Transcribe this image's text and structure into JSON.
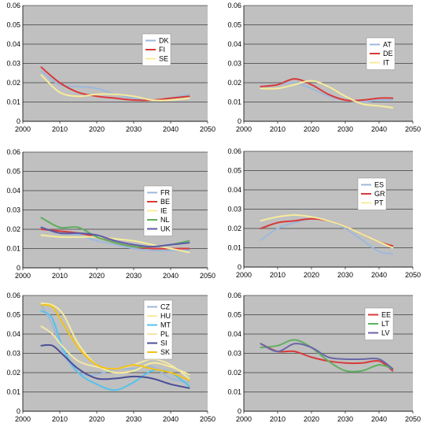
{
  "chart_data": [
    {
      "type": "line",
      "xlim": [
        2000,
        2050
      ],
      "ylim": [
        0,
        0.06
      ],
      "xticks": [
        "2000",
        "2010",
        "2020",
        "2030",
        "2040",
        "2050"
      ],
      "yticks": [
        "0",
        "0.01",
        "0.02",
        "0.03",
        "0.04",
        "0.05",
        "0.06"
      ],
      "grid": true,
      "legend": "center-right",
      "series": [
        {
          "name": "DK",
          "color": "#9db8da",
          "x": [
            2005,
            2010,
            2015,
            2020,
            2025,
            2030,
            2035,
            2040,
            2045
          ],
          "y": [
            0.026,
            0.019,
            0.018,
            0.017,
            0.014,
            0.012,
            0.011,
            0.012,
            0.014
          ]
        },
        {
          "name": "FI",
          "color": "#d83a3a",
          "x": [
            2005,
            2010,
            2015,
            2020,
            2025,
            2030,
            2035,
            2040,
            2045
          ],
          "y": [
            0.028,
            0.02,
            0.015,
            0.013,
            0.012,
            0.011,
            0.011,
            0.012,
            0.013
          ]
        },
        {
          "name": "SE",
          "color": "#f6ec9c",
          "x": [
            2005,
            2010,
            2015,
            2020,
            2025,
            2030,
            2035,
            2040,
            2045
          ],
          "y": [
            0.024,
            0.015,
            0.013,
            0.014,
            0.014,
            0.013,
            0.011,
            0.011,
            0.012
          ]
        }
      ]
    },
    {
      "type": "line",
      "xlim": [
        2000,
        2050
      ],
      "ylim": [
        0,
        0.06
      ],
      "xticks": [
        "2000",
        "2010",
        "2020",
        "2030",
        "2040",
        "2050"
      ],
      "yticks": [
        "0",
        "0.01",
        "0.02",
        "0.03",
        "0.04",
        "0.05",
        "0.06"
      ],
      "grid": true,
      "legend": "right",
      "series": [
        {
          "name": "AT",
          "color": "#9db8da",
          "x": [
            2005,
            2010,
            2015,
            2020,
            2025,
            2030,
            2035,
            2040,
            2044
          ],
          "y": [
            0.018,
            0.019,
            0.02,
            0.017,
            0.013,
            0.011,
            0.01,
            0.011,
            0.011
          ]
        },
        {
          "name": "DE",
          "color": "#d83a3a",
          "x": [
            2005,
            2010,
            2015,
            2020,
            2025,
            2030,
            2035,
            2040,
            2044
          ],
          "y": [
            0.018,
            0.019,
            0.022,
            0.019,
            0.014,
            0.011,
            0.011,
            0.012,
            0.012
          ]
        },
        {
          "name": "IT",
          "color": "#f6ec9c",
          "x": [
            2005,
            2010,
            2015,
            2020,
            2025,
            2030,
            2035,
            2040,
            2044
          ],
          "y": [
            0.017,
            0.017,
            0.019,
            0.021,
            0.018,
            0.013,
            0.009,
            0.008,
            0.007
          ]
        }
      ]
    },
    {
      "type": "line",
      "xlim": [
        2000,
        2050
      ],
      "ylim": [
        0,
        0.06
      ],
      "xticks": [
        "2000",
        "2010",
        "2020",
        "2030",
        "2040",
        "2050"
      ],
      "yticks": [
        "0",
        "0.01",
        "0.02",
        "0.03",
        "0.04",
        "0.05",
        "0.06"
      ],
      "grid": true,
      "legend": "right",
      "series": [
        {
          "name": "FR",
          "color": "#9db8da",
          "x": [
            2005,
            2010,
            2015,
            2020,
            2025,
            2030,
            2035,
            2040,
            2045
          ],
          "y": [
            0.021,
            0.018,
            0.017,
            0.014,
            0.012,
            0.01,
            0.009,
            0.009,
            0.009
          ]
        },
        {
          "name": "BE",
          "color": "#d83a3a",
          "x": [
            2005,
            2010,
            2015,
            2020,
            2025,
            2030,
            2035,
            2040,
            2045
          ],
          "y": [
            0.02,
            0.019,
            0.018,
            0.016,
            0.013,
            0.011,
            0.01,
            0.01,
            0.01
          ]
        },
        {
          "name": "IE",
          "color": "#f6ec9c",
          "x": [
            2005,
            2010,
            2015,
            2020,
            2025,
            2030,
            2035,
            2040,
            2045
          ],
          "y": [
            0.017,
            0.016,
            0.016,
            0.016,
            0.015,
            0.014,
            0.012,
            0.01,
            0.008
          ]
        },
        {
          "name": "NL",
          "color": "#5fae5f",
          "x": [
            2005,
            2010,
            2015,
            2020,
            2025,
            2030,
            2035,
            2040,
            2045
          ],
          "y": [
            0.026,
            0.021,
            0.021,
            0.016,
            0.013,
            0.011,
            0.011,
            0.012,
            0.014
          ]
        },
        {
          "name": "UK",
          "color": "#5f5aa8",
          "x": [
            2005,
            2010,
            2015,
            2020,
            2025,
            2030,
            2035,
            2040,
            2045
          ],
          "y": [
            0.021,
            0.018,
            0.018,
            0.017,
            0.014,
            0.012,
            0.011,
            0.012,
            0.013
          ]
        }
      ]
    },
    {
      "type": "line",
      "xlim": [
        2000,
        2050
      ],
      "ylim": [
        0,
        0.06
      ],
      "xticks": [
        "2000",
        "2010",
        "2020",
        "2030",
        "2040",
        "2050"
      ],
      "yticks": [
        "0",
        "0.01",
        "0.02",
        "0.03",
        "0.04",
        "0.05",
        "0.06"
      ],
      "grid": true,
      "legend": "right",
      "series": [
        {
          "name": "ES",
          "color": "#9db8da",
          "x": [
            2005,
            2010,
            2015,
            2020,
            2025,
            2030,
            2035,
            2040,
            2044
          ],
          "y": [
            0.014,
            0.02,
            0.023,
            0.025,
            0.024,
            0.02,
            0.014,
            0.008,
            0.007
          ]
        },
        {
          "name": "GR",
          "color": "#d83a3a",
          "x": [
            2005,
            2010,
            2015,
            2020,
            2025,
            2030,
            2035,
            2040,
            2044
          ],
          "y": [
            0.02,
            0.023,
            0.024,
            0.025,
            0.024,
            0.021,
            0.017,
            0.013,
            0.011
          ]
        },
        {
          "name": "PT",
          "color": "#f6ec9c",
          "x": [
            2005,
            2010,
            2015,
            2020,
            2025,
            2030,
            2035,
            2040,
            2044
          ],
          "y": [
            0.024,
            0.026,
            0.027,
            0.026,
            0.024,
            0.021,
            0.017,
            0.013,
            0.01
          ]
        }
      ]
    },
    {
      "type": "line",
      "xlim": [
        2000,
        2050
      ],
      "ylim": [
        0,
        0.06
      ],
      "xticks": [
        "2000",
        "2010",
        "2020",
        "2030",
        "2040",
        "2050"
      ],
      "yticks": [
        "0",
        "0.01",
        "0.02",
        "0.03",
        "0.04",
        "0.05",
        "0.06"
      ],
      "grid": true,
      "legend": "right",
      "series": [
        {
          "name": "CZ",
          "color": "#9db8da",
          "x": [
            2005,
            2008,
            2011,
            2015,
            2020,
            2025,
            2030,
            2035,
            2040,
            2045
          ],
          "y": [
            0.055,
            0.045,
            0.03,
            0.02,
            0.019,
            0.022,
            0.022,
            0.023,
            0.017,
            0.015
          ]
        },
        {
          "name": "HU",
          "color": "#f6ec9c",
          "x": [
            2005,
            2008,
            2011,
            2015,
            2020,
            2025,
            2030,
            2035,
            2040,
            2045
          ],
          "y": [
            0.056,
            0.055,
            0.05,
            0.035,
            0.024,
            0.02,
            0.021,
            0.025,
            0.023,
            0.019
          ]
        },
        {
          "name": "MT",
          "color": "#55c2ea",
          "x": [
            2005,
            2008,
            2011,
            2015,
            2020,
            2025,
            2030,
            2035,
            2040,
            2045
          ],
          "y": [
            0.052,
            0.048,
            0.032,
            0.02,
            0.014,
            0.011,
            0.015,
            0.021,
            0.02,
            0.013
          ]
        },
        {
          "name": "PL",
          "color": "#f3e7a8",
          "x": [
            2005,
            2008,
            2011,
            2015,
            2020,
            2025,
            2030,
            2035,
            2040,
            2045
          ],
          "y": [
            0.044,
            0.04,
            0.033,
            0.026,
            0.023,
            0.022,
            0.024,
            0.027,
            0.024,
            0.017
          ]
        },
        {
          "name": "SI",
          "color": "#4b4e96",
          "x": [
            2005,
            2008,
            2011,
            2015,
            2020,
            2025,
            2030,
            2035,
            2040,
            2045
          ],
          "y": [
            0.034,
            0.034,
            0.029,
            0.022,
            0.017,
            0.017,
            0.018,
            0.017,
            0.014,
            0.012
          ]
        },
        {
          "name": "SK",
          "color": "#f2c21a",
          "x": [
            2005,
            2008,
            2011,
            2015,
            2020,
            2025,
            2030,
            2035,
            2040,
            2045
          ],
          "y": [
            0.055,
            0.054,
            0.045,
            0.033,
            0.024,
            0.022,
            0.024,
            0.022,
            0.02,
            0.016
          ]
        }
      ]
    },
    {
      "type": "line",
      "xlim": [
        2000,
        2050
      ],
      "ylim": [
        0,
        0.06
      ],
      "xticks": [
        "2000",
        "2010",
        "2020",
        "2030",
        "2040",
        "2050"
      ],
      "yticks": [
        "0",
        "0.01",
        "0.02",
        "0.03",
        "0.04",
        "0.05",
        "0.06"
      ],
      "grid": true,
      "legend": "right",
      "series": [
        {
          "name": "EE",
          "color": "#d83a3a",
          "x": [
            2005,
            2010,
            2015,
            2020,
            2025,
            2030,
            2035,
            2040,
            2044
          ],
          "y": [
            0.035,
            0.031,
            0.031,
            0.028,
            0.026,
            0.025,
            0.025,
            0.026,
            0.021
          ]
        },
        {
          "name": "LT",
          "color": "#5fae5f",
          "x": [
            2005,
            2010,
            2015,
            2020,
            2025,
            2030,
            2035,
            2040,
            2044
          ],
          "y": [
            0.033,
            0.034,
            0.037,
            0.033,
            0.026,
            0.021,
            0.021,
            0.024,
            0.022
          ]
        },
        {
          "name": "LV",
          "color": "#6a66a8",
          "x": [
            2005,
            2010,
            2015,
            2020,
            2025,
            2030,
            2035,
            2040,
            2044
          ],
          "y": [
            0.035,
            0.031,
            0.035,
            0.033,
            0.028,
            0.027,
            0.027,
            0.027,
            0.022
          ]
        }
      ]
    }
  ]
}
